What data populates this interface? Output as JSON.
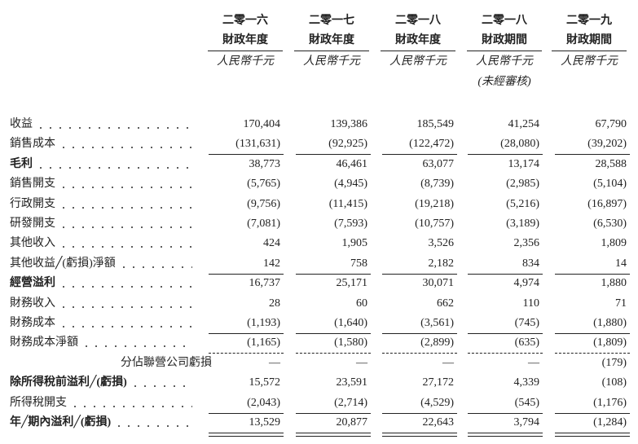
{
  "header": {
    "columns": [
      {
        "line1": "二零一六",
        "line2": "財政年度",
        "unit": "人民幣千元"
      },
      {
        "line1": "二零一七",
        "line2": "財政年度",
        "unit": "人民幣千元"
      },
      {
        "line1": "二零一八",
        "line2": "財政年度",
        "unit": "人民幣千元"
      },
      {
        "line1": "二零一八",
        "line2": "財政期間",
        "unit": "人民幣千元",
        "note": "(未經審核)"
      },
      {
        "line1": "二零一九",
        "line2": "財政期間",
        "unit": "人民幣千元"
      }
    ]
  },
  "table": {
    "rows": [
      {
        "label": "收益",
        "values": [
          "170,404",
          "139,386",
          "185,549",
          "41,254",
          "67,790"
        ]
      },
      {
        "label": "銷售成本",
        "values": [
          "(131,631)",
          "(92,925)",
          "(122,472)",
          "(28,080)",
          "(39,202)"
        ]
      },
      {
        "label": "毛利",
        "values": [
          "38,773",
          "46,461",
          "63,077",
          "13,174",
          "28,588"
        ]
      },
      {
        "label": "銷售開支",
        "values": [
          "(5,765)",
          "(4,945)",
          "(8,739)",
          "(2,985)",
          "(5,104)"
        ]
      },
      {
        "label": "行政開支",
        "values": [
          "(9,756)",
          "(11,415)",
          "(19,218)",
          "(5,216)",
          "(16,897)"
        ]
      },
      {
        "label": "研發開支",
        "values": [
          "(7,081)",
          "(7,593)",
          "(10,757)",
          "(3,189)",
          "(6,530)"
        ]
      },
      {
        "label": "其他收入",
        "values": [
          "424",
          "1,905",
          "3,526",
          "2,356",
          "1,809"
        ]
      },
      {
        "label": "其他收益╱(虧損)淨額",
        "values": [
          "142",
          "758",
          "2,182",
          "834",
          "14"
        ]
      },
      {
        "label": "經營溢利",
        "values": [
          "16,737",
          "25,171",
          "30,071",
          "4,974",
          "1,880"
        ]
      },
      {
        "label": "財務收入",
        "values": [
          "28",
          "60",
          "662",
          "110",
          "71"
        ]
      },
      {
        "label": "財務成本",
        "values": [
          "(1,193)",
          "(1,640)",
          "(3,561)",
          "(745)",
          "(1,880)"
        ]
      },
      {
        "label": "財務成本淨額",
        "values": [
          "(1,165)",
          "(1,580)",
          "(2,899)",
          "(635)",
          "(1,809)"
        ]
      },
      {
        "label": "分佔聯營公司虧損",
        "values": [
          "—",
          "—",
          "—",
          "—",
          "(179)"
        ]
      },
      {
        "label": "除所得稅前溢利╱(虧損)",
        "values": [
          "15,572",
          "23,591",
          "27,172",
          "4,339",
          "(108)"
        ]
      },
      {
        "label": "所得稅開支",
        "values": [
          "(2,043)",
          "(2,714)",
          "(4,529)",
          "(545)",
          "(1,176)"
        ]
      },
      {
        "label": "年╱期內溢利╱(虧損)",
        "values": [
          "13,529",
          "20,877",
          "22,643",
          "3,794",
          "(1,284)"
        ]
      }
    ]
  }
}
